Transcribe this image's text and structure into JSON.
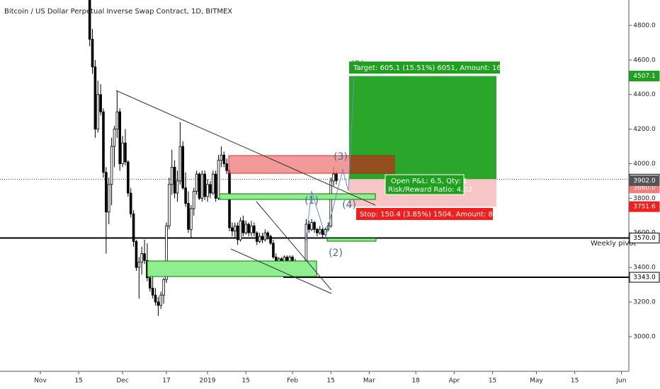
{
  "chart_data": {
    "type": "candlestick",
    "title": "Bitcoin / US Dollar Perpetual Inverse Swap Contract, 1D, BITMEX",
    "color": "#000000",
    "ylim": [
      2799,
      4947
    ],
    "yticks": [
      {
        "value": 3000,
        "label": "3000.0"
      },
      {
        "value": 3200,
        "label": "3200.0"
      },
      {
        "value": 3400,
        "label": "3400.0"
      },
      {
        "value": 3600,
        "label": "3600.0"
      },
      {
        "value": 3800,
        "label": "3800.0"
      },
      {
        "value": 4000,
        "label": "4000.0"
      },
      {
        "value": 4200,
        "label": "4200.0"
      },
      {
        "value": 4400,
        "label": "4400.0"
      },
      {
        "value": 4600,
        "label": "4600.0"
      },
      {
        "value": 4800,
        "label": "4800.0"
      }
    ],
    "categories": [
      "Nov",
      null,
      null,
      null,
      null,
      null,
      null,
      null,
      null,
      null,
      null,
      null,
      null,
      null,
      "15",
      null,
      null,
      null,
      null,
      null,
      null,
      null,
      null,
      null,
      null,
      null,
      null,
      null,
      null,
      null,
      "Dec",
      null,
      null,
      null,
      null,
      null,
      null,
      null,
      null,
      null,
      null,
      null,
      null,
      null,
      null,
      null,
      "17",
      null,
      null,
      null,
      null,
      null,
      null,
      null,
      null,
      null,
      null,
      null,
      null,
      null,
      null,
      "2019",
      null,
      null,
      null,
      null,
      null,
      null,
      null,
      null,
      null,
      null,
      null,
      null,
      null,
      "15",
      null,
      null,
      null,
      null,
      null,
      null,
      null,
      null,
      null,
      null,
      null,
      null,
      null,
      null,
      null,
      null,
      "Feb",
      null,
      null,
      null,
      null,
      null,
      null,
      null,
      null,
      null,
      null,
      null,
      null,
      null,
      "15",
      null,
      null,
      null,
      null,
      null,
      null,
      null,
      null,
      null,
      null,
      null,
      null,
      null,
      "Mar",
      null,
      null,
      null,
      null,
      null,
      null,
      null,
      null,
      null,
      null,
      null,
      null,
      null,
      null,
      null,
      null,
      "18",
      null,
      null,
      null,
      null,
      null,
      null,
      null,
      null,
      null,
      null,
      null,
      null,
      null,
      "Apr",
      null,
      null,
      null,
      null,
      null,
      null,
      null,
      null,
      null,
      null,
      null,
      null,
      null,
      "15",
      null,
      null,
      null,
      null,
      null,
      null,
      null,
      null,
      null,
      null,
      null,
      null,
      null,
      null,
      null,
      "May",
      null,
      null,
      null,
      null,
      null,
      null,
      null,
      null,
      null,
      null,
      null,
      null,
      null,
      "15",
      null,
      null,
      null,
      null,
      null,
      null,
      null,
      null,
      null,
      null,
      null,
      null,
      null,
      null,
      null,
      null,
      "Jun",
      null,
      null
    ],
    "ohlc": [
      null,
      null,
      null,
      null,
      null,
      null,
      null,
      null,
      null,
      null,
      null,
      null,
      null,
      null,
      null,
      null,
      null,
      null,
      [
        5200,
        5500,
        4680,
        4720
      ],
      [
        4720,
        4780,
        4520,
        4560
      ],
      [
        4560,
        4600,
        4150,
        4200
      ],
      [
        4200,
        4480,
        4180,
        4400
      ],
      [
        4400,
        4460,
        4280,
        4300
      ],
      [
        4300,
        4320,
        3920,
        3950
      ],
      [
        3950,
        3980,
        3480,
        3720
      ],
      [
        3720,
        3920,
        3650,
        3880
      ],
      [
        3880,
        4150,
        3760,
        4100
      ],
      [
        4100,
        4220,
        3980,
        4200
      ],
      [
        4200,
        4420,
        4150,
        4300
      ],
      [
        4300,
        4320,
        3960,
        4000
      ],
      [
        4000,
        4160,
        3980,
        4120
      ],
      [
        4120,
        4200,
        3990,
        4010
      ],
      [
        4010,
        4020,
        3810,
        3830
      ],
      [
        3830,
        3860,
        3690,
        3710
      ],
      [
        3710,
        3730,
        3520,
        3550
      ],
      [
        3550,
        3560,
        3380,
        3400
      ],
      [
        3400,
        3460,
        3220,
        3430
      ],
      [
        3430,
        3520,
        3360,
        3480
      ],
      [
        3480,
        3560,
        3420,
        3440
      ],
      [
        3440,
        3540,
        3320,
        3340
      ],
      [
        3340,
        3400,
        3260,
        3280
      ],
      [
        3280,
        3350,
        3220,
        3240
      ],
      [
        3240,
        3280,
        3180,
        3200
      ],
      [
        3200,
        3230,
        3120,
        3180
      ],
      [
        3180,
        3260,
        3160,
        3240
      ],
      [
        3240,
        3340,
        3190,
        3330
      ],
      [
        3330,
        3660,
        3310,
        3640
      ],
      [
        3640,
        3920,
        3620,
        3880
      ],
      [
        3880,
        4080,
        3820,
        3980
      ],
      [
        3980,
        4020,
        3800,
        3830
      ],
      [
        3830,
        3960,
        3780,
        3900
      ],
      [
        3900,
        4240,
        3880,
        4100
      ],
      [
        4100,
        4130,
        3850,
        3860
      ],
      [
        3860,
        3950,
        3750,
        3770
      ],
      [
        3770,
        3840,
        3600,
        3620
      ],
      [
        3620,
        3760,
        3570,
        3740
      ],
      [
        3740,
        3860,
        3700,
        3840
      ],
      [
        3840,
        3960,
        3820,
        3940
      ],
      [
        3940,
        3950,
        3790,
        3800
      ],
      [
        3800,
        3960,
        3780,
        3940
      ],
      [
        3940,
        3960,
        3790,
        3810
      ],
      [
        3810,
        3910,
        3780,
        3880
      ],
      [
        3880,
        3900,
        3800,
        3830
      ],
      [
        3830,
        3960,
        3820,
        3940
      ],
      [
        3940,
        3960,
        3780,
        3800
      ],
      [
        3800,
        4050,
        3790,
        4020
      ],
      [
        4020,
        4100,
        3980,
        4050
      ],
      [
        4050,
        4070,
        3980,
        4000
      ],
      [
        4000,
        4030,
        3940,
        3960
      ],
      [
        3960,
        3970,
        3610,
        3630
      ],
      [
        3630,
        3660,
        3580,
        3610
      ],
      [
        3610,
        3660,
        3570,
        3640
      ],
      [
        3640,
        3660,
        3530,
        3560
      ],
      [
        3560,
        3690,
        3550,
        3670
      ],
      [
        3670,
        3700,
        3580,
        3600
      ],
      [
        3600,
        3670,
        3590,
        3650
      ],
      [
        3650,
        3660,
        3580,
        3600
      ],
      [
        3600,
        3670,
        3580,
        3640
      ],
      [
        3640,
        3660,
        3580,
        3600
      ],
      [
        3600,
        3610,
        3530,
        3550
      ],
      [
        3550,
        3600,
        3540,
        3580
      ],
      [
        3580,
        3600,
        3540,
        3560
      ],
      [
        3560,
        3620,
        3550,
        3600
      ],
      [
        3600,
        3610,
        3560,
        3580
      ],
      [
        3580,
        3590,
        3530,
        3540
      ],
      [
        3540,
        3560,
        3450,
        3460
      ],
      [
        3460,
        3480,
        3380,
        3400
      ],
      [
        3400,
        3460,
        3390,
        3450
      ],
      [
        3450,
        3460,
        3400,
        3410
      ],
      [
        3410,
        3470,
        3390,
        3460
      ],
      [
        3460,
        3470,
        3420,
        3430
      ],
      [
        3430,
        3470,
        3420,
        3460
      ],
      [
        3460,
        3470,
        3410,
        3420
      ],
      [
        3420,
        3450,
        3400,
        3430
      ],
      [
        3430,
        3440,
        3370,
        3380
      ],
      [
        3380,
        3400,
        3340,
        3360
      ],
      [
        3360,
        3400,
        3350,
        3380
      ],
      [
        3380,
        3680,
        3370,
        3650
      ],
      [
        3650,
        3670,
        3600,
        3620
      ],
      [
        3620,
        3680,
        3610,
        3660
      ],
      [
        3660,
        3670,
        3600,
        3620
      ],
      [
        3620,
        3630,
        3580,
        3600
      ],
      [
        3600,
        3640,
        3590,
        3620
      ],
      [
        3620,
        3630,
        3570,
        3590
      ],
      [
        3590,
        3630,
        3580,
        3620
      ],
      [
        3620,
        3660,
        3610,
        3640
      ],
      [
        3640,
        3920,
        3630,
        3900
      ],
      [
        3900,
        3980,
        3870,
        3940
      ],
      [
        3940,
        3960,
        3880,
        3902
      ],
      null,
      null,
      null,
      null,
      null,
      null,
      null,
      null,
      null,
      null,
      null,
      null,
      null,
      null,
      null,
      null,
      null,
      null,
      null,
      null,
      null,
      null,
      null,
      null,
      null,
      null,
      null,
      null,
      null,
      null,
      null,
      null,
      null,
      null,
      null,
      null,
      null,
      null,
      null,
      null,
      null,
      null,
      null,
      null,
      null,
      null,
      null,
      null,
      null,
      null,
      null,
      null,
      null,
      null,
      null,
      null,
      null,
      null,
      null,
      null,
      null,
      null,
      null,
      null,
      null,
      null,
      null,
      null,
      null,
      null,
      null,
      null,
      null,
      null,
      null,
      null,
      null,
      null,
      null,
      null,
      null,
      null,
      null,
      null,
      null,
      null,
      null,
      null,
      null,
      null,
      null,
      null,
      null,
      null,
      null,
      null,
      null,
      null,
      null,
      null,
      null,
      null,
      null,
      null,
      null,
      null
    ],
    "price_labels": [
      {
        "value": 4507.1,
        "label": "4507.1",
        "color": "#1fa11f"
      },
      {
        "value": 3910.5,
        "label": "3910.5",
        "color": "#ffffff"
      },
      {
        "value": 3860,
        "label": "3860.0",
        "color": "#f08080"
      },
      {
        "value": 3902,
        "label": "3902.0",
        "color": "#555555"
      },
      {
        "value": 3751.6,
        "label": "3751.6",
        "color": "#f21f1f"
      },
      {
        "value": 3570,
        "label": "3570.0",
        "color": "#ffffff"
      },
      {
        "value": 3343,
        "label": "3343.0",
        "color": "#ffffff"
      }
    ],
    "position": {
      "target_text": "Target: 605.1 (15.51%) 6051, Amount: 1605.1",
      "open_pnl_text": "Open P&L: 6.5, Qty: 1",
      "risk_reward_text": "Risk/Reward Ratio: 4.02",
      "stop_text": "Stop: 150.4 (3.85%) 1504, Amount: 849.6"
    },
    "pivot_label": "Weekly pivot",
    "waves": [
      "(1)",
      "(2)",
      "(3)",
      "(4)",
      "(5)"
    ]
  }
}
